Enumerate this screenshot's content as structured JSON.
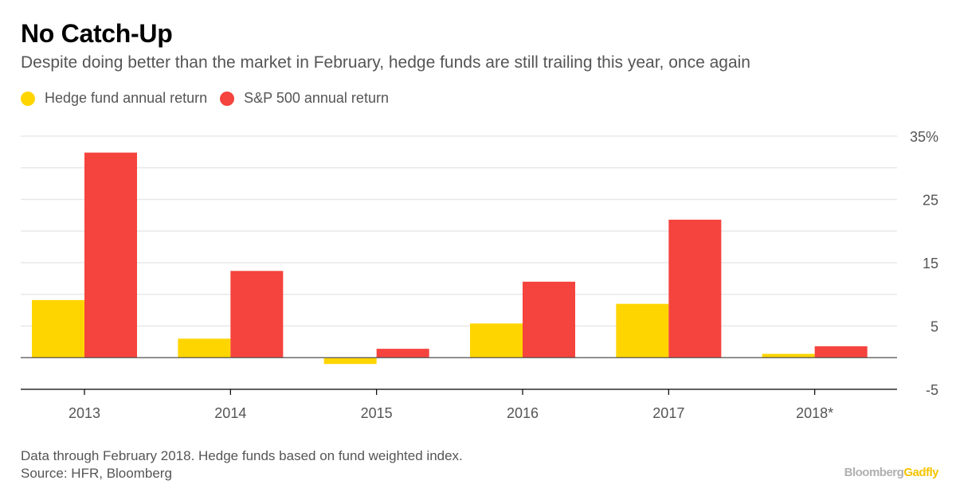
{
  "header": {
    "title": "No Catch-Up",
    "subtitle": "Despite doing better than the market in February, hedge funds are still trailing this year, once again"
  },
  "legend": [
    {
      "label": "Hedge fund annual return",
      "color": "#ffd500"
    },
    {
      "label": "S&P 500 annual return",
      "color": "#f5433d"
    }
  ],
  "footer": {
    "note": "Data through February 2018. Hedge funds based on fund weighted index.",
    "source": "Source: HFR, Bloomberg",
    "brand_main": "Bloomberg",
    "brand_accent": "Gadfly"
  },
  "chart_data": {
    "type": "bar",
    "categories": [
      "2013",
      "2014",
      "2015",
      "2016",
      "2017",
      "2018*"
    ],
    "series": [
      {
        "name": "Hedge fund annual return",
        "color": "#ffd500",
        "values": [
          9.1,
          3.0,
          -1.0,
          5.4,
          8.5,
          0.6
        ]
      },
      {
        "name": "S&P 500 annual return",
        "color": "#f5433d",
        "values": [
          32.4,
          13.7,
          1.4,
          12.0,
          21.8,
          1.8
        ]
      }
    ],
    "ylim": [
      -5,
      35
    ],
    "yticks": [
      35,
      25,
      15,
      5,
      -5
    ],
    "ytick_labels": [
      "35%",
      "25",
      "15",
      "5",
      "-5"
    ],
    "grid": true,
    "legend_position": "top-left"
  }
}
